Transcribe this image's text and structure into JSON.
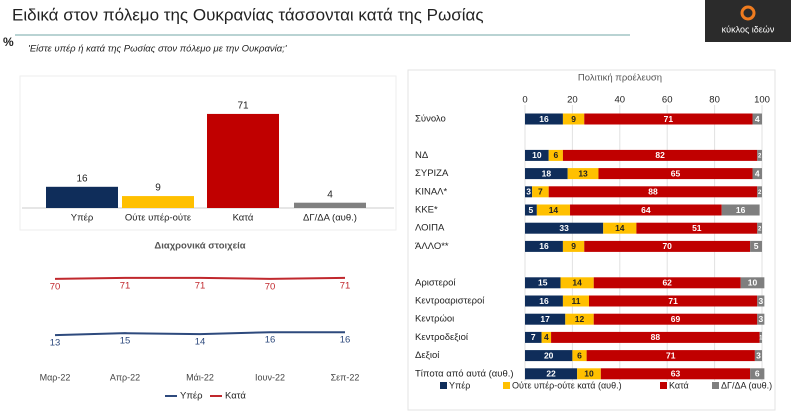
{
  "title": "Ειδικά στον πόλεμο της Ουκρανίας τάσσονται κατά της Ρωσίας",
  "logo": "κύκλος ιδεών",
  "unit": "%",
  "question": "'Είστε υπέρ ή κατά της Ρωσίας στον πόλεμο με την Ουκρανία;'",
  "chart_data": [
    {
      "type": "bar",
      "categories": [
        "Υπέρ",
        "Ούτε υπέρ-ούτε",
        "Κατά",
        "ΔΓ/ΔΑ (αυθ.)"
      ],
      "values": [
        16,
        9,
        71,
        4
      ],
      "colors": [
        "#0f2d5a",
        "#ffc000",
        "#c00000",
        "#808080"
      ],
      "ylim": [
        0,
        80
      ]
    },
    {
      "type": "line",
      "title": "Διαχρονικά στοιχεία",
      "categories": [
        "Μαρ-22",
        "Απρ-22",
        "Μάι-22",
        "Ιουν-22",
        "Σεπ-22"
      ],
      "series": [
        {
          "name": "Υπέρ",
          "color": "#2e4a7d",
          "values": [
            13,
            15,
            14,
            16,
            16
          ]
        },
        {
          "name": "Κατά",
          "color": "#c0282d",
          "values": [
            70,
            71,
            71,
            70,
            71
          ]
        }
      ],
      "ylim": [
        0,
        80
      ]
    },
    {
      "type": "stacked-hbar",
      "title": "Πολιτική προέλευση",
      "categories": [
        "Σύνολο",
        "ΝΔ",
        "ΣΥΡΙΖΑ",
        "ΚΙΝΑΛ*",
        "ΚΚΕ*",
        "ΛΟΙΠΑ",
        "ΆΛΛΟ**",
        "Αριστεροί",
        "Κεντροαριστεροί",
        "Κεντρώοι",
        "Κεντροδεξιοί",
        "Δεξιοί",
        "Τίποτα από αυτά (αυθ.)"
      ],
      "series": [
        {
          "name": "Υπέρ",
          "color": "#0f2d5a",
          "values": [
            16,
            10,
            18,
            3,
            5,
            33,
            16,
            15,
            16,
            17,
            7,
            20,
            22
          ]
        },
        {
          "name": "Ούτε υπέρ-ούτε κατά (αυθ.)",
          "color": "#ffc000",
          "values": [
            9,
            6,
            13,
            7,
            14,
            14,
            9,
            14,
            11,
            12,
            4,
            6,
            10
          ]
        },
        {
          "name": "Κατά",
          "color": "#c00000",
          "values": [
            71,
            82,
            65,
            88,
            64,
            51,
            70,
            62,
            71,
            69,
            88,
            71,
            63
          ]
        },
        {
          "name": "ΔΓ/ΔΑ (αυθ.)",
          "color": "#7f7f7f",
          "values": [
            4,
            2,
            4,
            2,
            16,
            2,
            5,
            10,
            3,
            3,
            1,
            3,
            6
          ]
        }
      ],
      "xlim": [
        0,
        100
      ],
      "xticks": [
        0,
        20,
        40,
        60,
        80,
        100
      ],
      "grid": true
    }
  ]
}
